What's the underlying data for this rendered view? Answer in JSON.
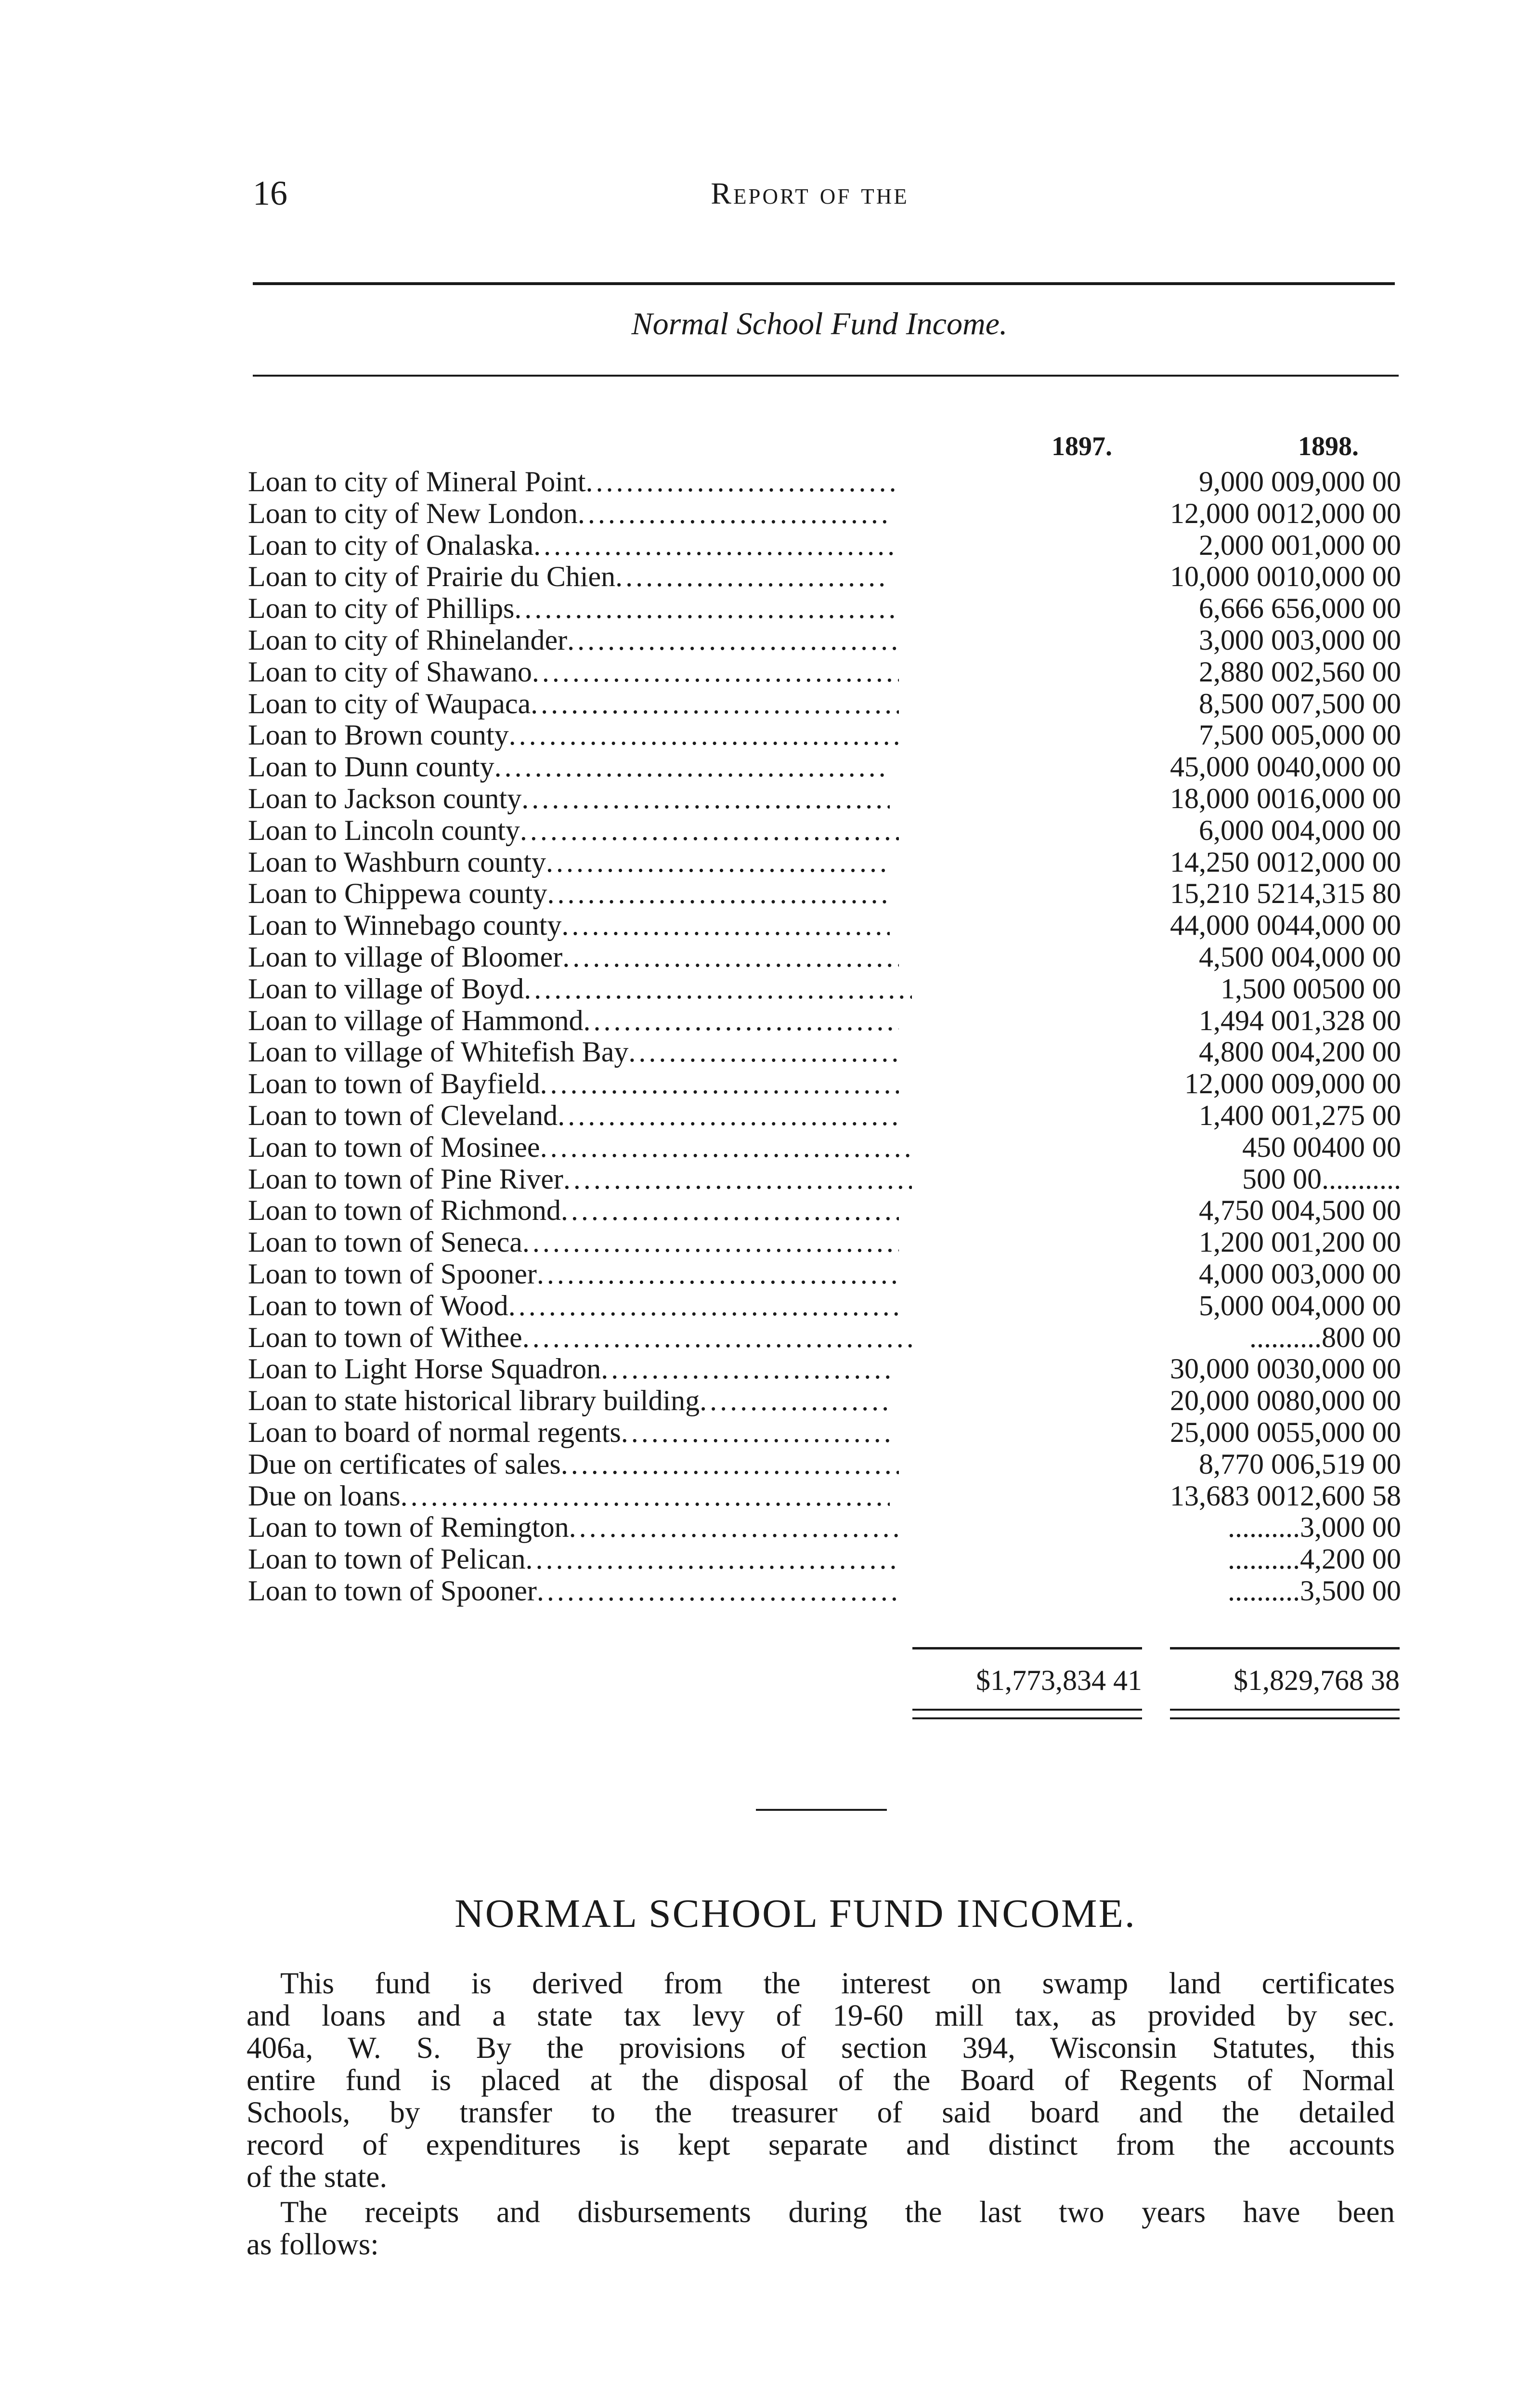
{
  "header": {
    "page_number": "16",
    "running_head": "Report of the"
  },
  "table": {
    "title": "Normal School Fund Income.",
    "columns": [
      "1897.",
      "1898."
    ],
    "rows": [
      {
        "label": "Loan to city of Mineral Point",
        "v1897": "9,000 00",
        "v1898": "9,000 00"
      },
      {
        "label": "Loan to city of New London",
        "v1897": "12,000 00",
        "v1898": "12,000 00"
      },
      {
        "label": "Loan to city of Onalaska",
        "v1897": "2,000 00",
        "v1898": "1,000 00"
      },
      {
        "label": "Loan to city of Prairie du Chien",
        "v1897": "10,000 00",
        "v1898": "10,000 00"
      },
      {
        "label": "Loan to city of Phillips",
        "v1897": "6,666 65",
        "v1898": "6,000 00"
      },
      {
        "label": "Loan to city of Rhinelander",
        "v1897": "3,000 00",
        "v1898": "3,000 00"
      },
      {
        "label": "Loan to city of Shawano",
        "v1897": "2,880 00",
        "v1898": "2,560 00"
      },
      {
        "label": "Loan to city of Waupaca",
        "v1897": "8,500 00",
        "v1898": "7,500 00"
      },
      {
        "label": "Loan to Brown county",
        "v1897": "7,500 00",
        "v1898": "5,000 00"
      },
      {
        "label": "Loan to Dunn county",
        "v1897": "45,000 00",
        "v1898": "40,000 00"
      },
      {
        "label": "Loan to Jackson county",
        "v1897": "18,000 00",
        "v1898": "16,000 00"
      },
      {
        "label": "Loan to Lincoln county",
        "v1897": "6,000 00",
        "v1898": "4,000 00"
      },
      {
        "label": "Loan to Washburn county",
        "v1897": "14,250 00",
        "v1898": "12,000 00"
      },
      {
        "label": "Loan to Chippewa county",
        "v1897": "15,210 52",
        "v1898": "14,315 80"
      },
      {
        "label": "Loan to Winnebago county",
        "v1897": "44,000 00",
        "v1898": "44,000 00"
      },
      {
        "label": "Loan to village of Bloomer",
        "v1897": "4,500 00",
        "v1898": "4,000 00"
      },
      {
        "label": "Loan to village of Boyd",
        "v1897": "1,500 00",
        "v1898": "500 00"
      },
      {
        "label": "Loan to village of Hammond",
        "v1897": "1,494 00",
        "v1898": "1,328 00"
      },
      {
        "label": "Loan to village of Whitefish Bay",
        "v1897": "4,800 00",
        "v1898": "4,200 00"
      },
      {
        "label": "Loan to town of Bayfield",
        "v1897": "12,000 00",
        "v1898": "9,000 00"
      },
      {
        "label": "Loan to town of Cleveland",
        "v1897": "1,400 00",
        "v1898": "1,275 00"
      },
      {
        "label": "Loan to town of Mosinee",
        "v1897": "450 00",
        "v1898": "400 00"
      },
      {
        "label": "Loan to town of Pine River",
        "v1897": "500 00",
        "v1898": "..........."
      },
      {
        "label": "Loan to town of Richmond",
        "v1897": "4,750 00",
        "v1898": "4,500 00"
      },
      {
        "label": "Loan to town of Seneca",
        "v1897": "1,200 00",
        "v1898": "1,200 00"
      },
      {
        "label": "Loan to town of Spooner",
        "v1897": "4,000 00",
        "v1898": "3,000 00"
      },
      {
        "label": "Loan to town of Wood",
        "v1897": "5,000 00",
        "v1898": "4,000 00"
      },
      {
        "label": "Loan to town of Withee",
        "v1897": "..........",
        "v1898": "800 00"
      },
      {
        "label": "Loan to Light Horse Squadron",
        "v1897": "30,000 00",
        "v1898": "30,000 00"
      },
      {
        "label": "Loan to state historical library building",
        "v1897": "20,000 00",
        "v1898": "80,000 00"
      },
      {
        "label": "Loan to board of normal regents",
        "v1897": "25,000 00",
        "v1898": "55,000 00"
      },
      {
        "label": "Due on certificates of sales",
        "v1897": "8,770 00",
        "v1898": "6,519 00"
      },
      {
        "label": "Due on loans",
        "v1897": "13,683 00",
        "v1898": "12,600 58"
      },
      {
        "label": "Loan to town of Remington",
        "v1897": "..........",
        "v1898": "3,000 00"
      },
      {
        "label": "Loan to town of Pelican",
        "v1897": "..........",
        "v1898": "4,200 00"
      },
      {
        "label": "Loan to town of Spooner",
        "v1897": "..........",
        "v1898": "3,500 00"
      }
    ],
    "totals": {
      "v1897": "$1,773,834 41",
      "v1898": "$1,829,768 38"
    }
  },
  "section": {
    "heading": "NORMAL SCHOOL FUND INCOME.",
    "paragraph1": [
      "This fund is derived from the interest on swamp land certificates",
      "and loans and a state tax levy of 19-60 mill tax, as provided by sec.",
      "406a, W. S.  By the provisions of section 394, Wisconsin Statutes, this",
      "entire fund is placed at the disposal of the Board of Regents of Normal",
      "Schools, by transfer to the treasurer of said board and the detailed",
      "record of expenditures is kept separate and distinct from the accounts",
      "of the state."
    ],
    "paragraph2": [
      "The receipts and disbursements during the last two years have been",
      "as follows:"
    ]
  }
}
